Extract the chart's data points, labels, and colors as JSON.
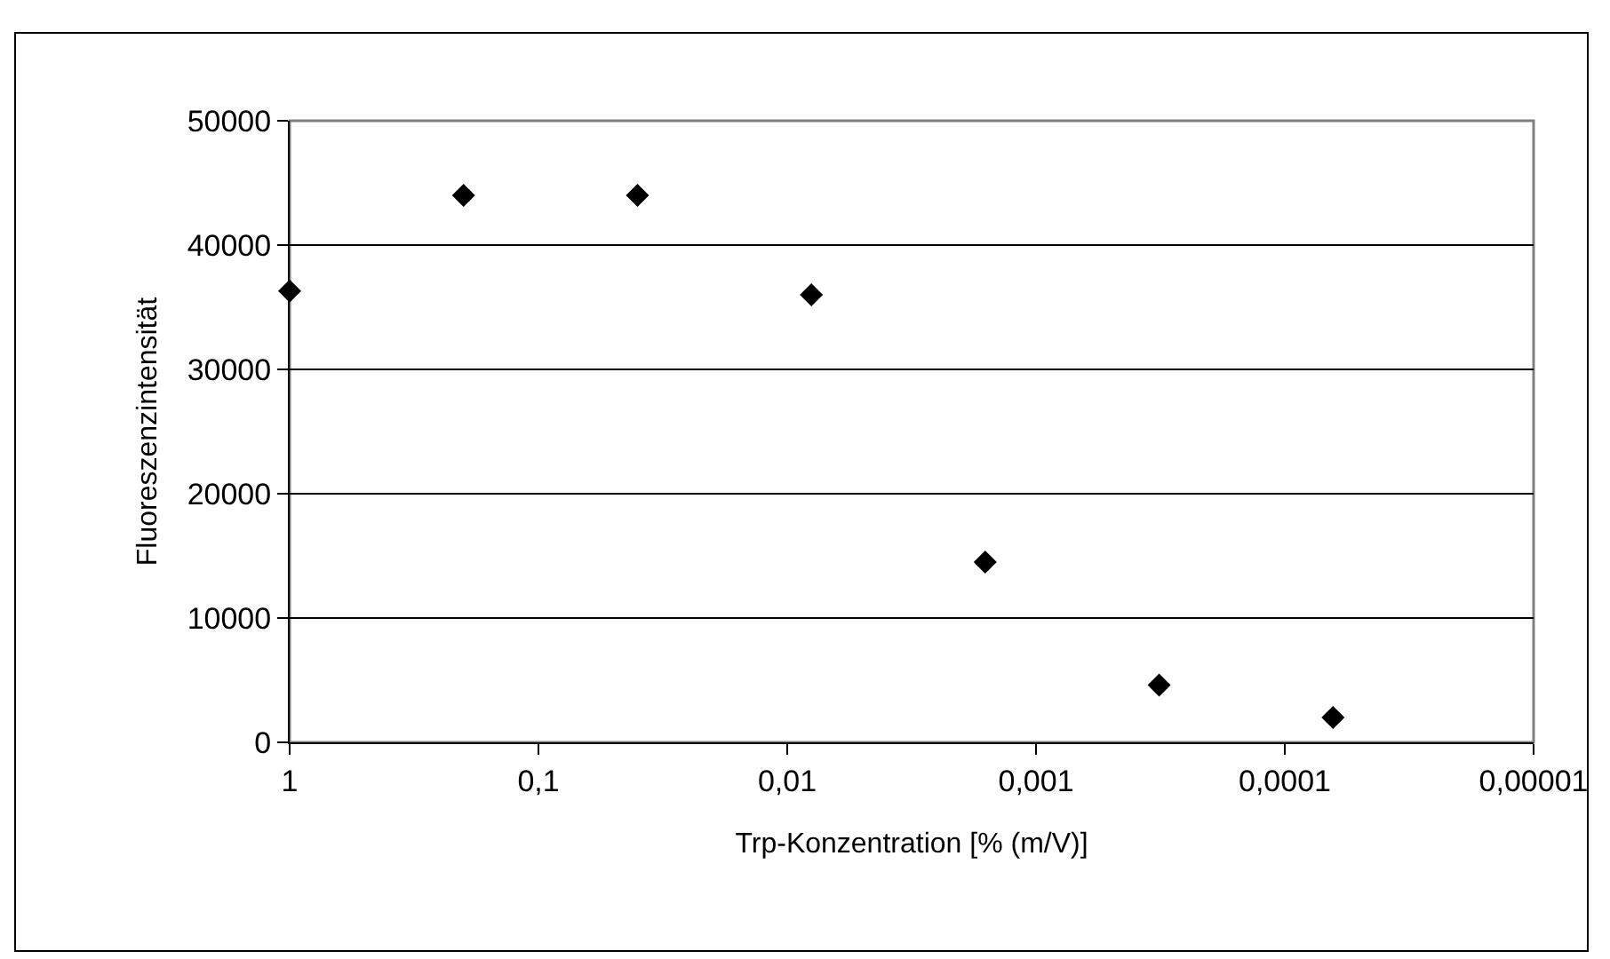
{
  "chart_data": {
    "type": "scatter",
    "xlabel": "Trp-Konzentration [% (m/V)]",
    "ylabel": "Fluoreszenzintensität",
    "x": [
      1,
      0.2,
      0.04,
      0.008,
      0.0016,
      0.00032,
      6.4e-05
    ],
    "series": [
      {
        "color": "#000000",
        "values": [
          36300,
          44000,
          44000,
          36000,
          14500,
          4600,
          2000
        ]
      }
    ],
    "log": "x",
    "xlim": [
      1,
      1e-05
    ],
    "xticks": [
      {
        "value": 1,
        "label": "1"
      },
      {
        "value": 0.1,
        "label": "0,1"
      },
      {
        "value": 0.01,
        "label": "0,01"
      },
      {
        "value": 0.001,
        "label": "0,001"
      },
      {
        "value": 0.0001,
        "label": "0,0001"
      },
      {
        "value": 1e-05,
        "label": "0,00001"
      }
    ],
    "ylim": [
      0,
      50000
    ],
    "yticks": [
      0,
      10000,
      20000,
      30000,
      40000,
      50000
    ],
    "grid": "y",
    "marker": "diamond",
    "legend": false
  }
}
